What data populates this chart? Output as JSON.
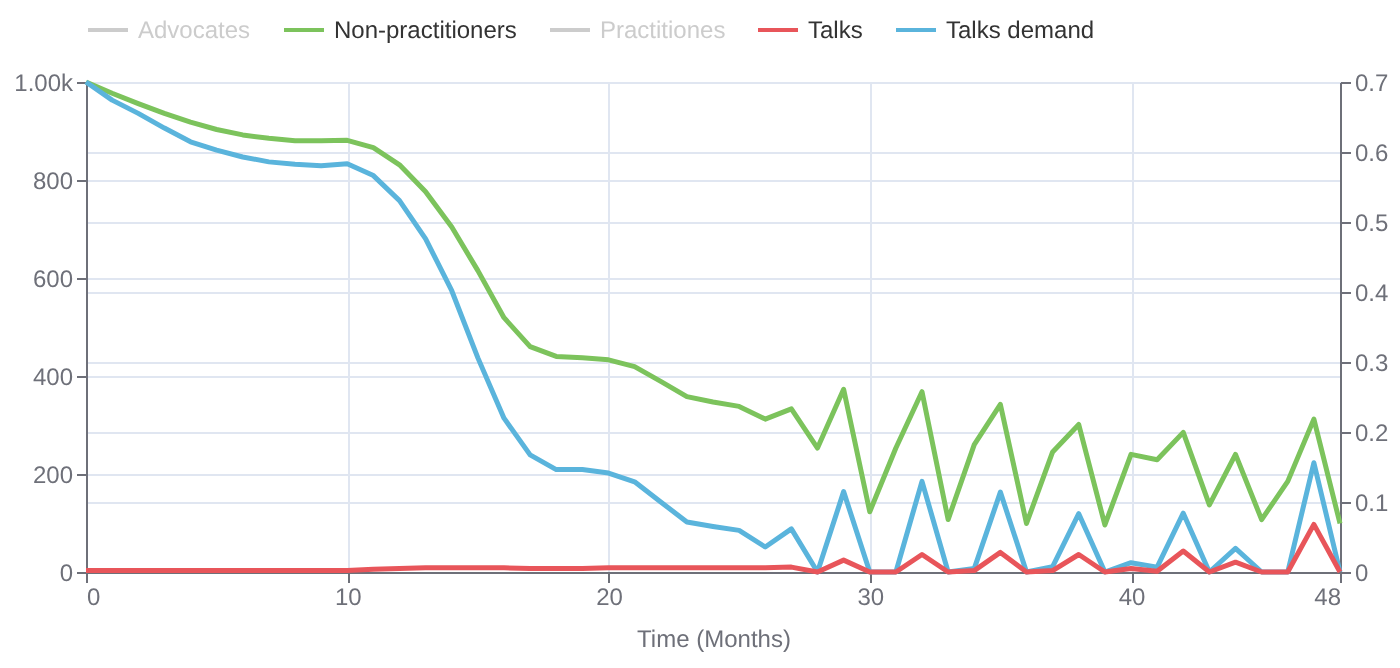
{
  "chart_data": {
    "type": "line",
    "xlabel": "Time (Months)",
    "x": [
      0,
      1,
      2,
      3,
      4,
      5,
      6,
      7,
      8,
      9,
      10,
      11,
      12,
      13,
      14,
      15,
      16,
      17,
      18,
      19,
      20,
      21,
      22,
      23,
      24,
      25,
      26,
      27,
      28,
      29,
      30,
      31,
      32,
      33,
      34,
      35,
      36,
      37,
      38,
      39,
      40,
      41,
      42,
      43,
      44,
      45,
      46,
      47,
      48
    ],
    "series": [
      {
        "name": "Advocates",
        "color": "#cccccc",
        "values": [
          null,
          null,
          null,
          null,
          null,
          null,
          null,
          null,
          null,
          null,
          null,
          null,
          null,
          null,
          null,
          null,
          null,
          null,
          null,
          null,
          null,
          null,
          null,
          null,
          null,
          null,
          null,
          null,
          null,
          null,
          null,
          null,
          null,
          null,
          null,
          null,
          null,
          null,
          null,
          null,
          null,
          null,
          null,
          null,
          null,
          null,
          null,
          null,
          null
        ]
      },
      {
        "name": "Non-practitioners",
        "color": "#7cc35c",
        "values": [
          1000,
          977,
          956,
          936,
          918,
          903,
          892,
          885,
          880,
          880,
          881,
          866,
          831,
          776,
          704,
          615,
          519,
          460,
          440,
          437,
          433,
          419,
          389,
          358,
          347,
          338,
          312,
          333,
          253,
          373,
          123,
          253,
          368,
          107,
          260,
          342,
          99,
          245,
          301,
          96,
          240,
          229,
          285,
          137,
          240,
          107,
          185,
          312,
          99
        ]
      },
      {
        "name": "Practitiones",
        "color": "#cccccc",
        "values": [
          null,
          null,
          null,
          null,
          null,
          null,
          null,
          null,
          null,
          null,
          null,
          null,
          null,
          null,
          null,
          null,
          null,
          null,
          null,
          null,
          null,
          null,
          null,
          null,
          null,
          null,
          null,
          null,
          null,
          null,
          null,
          null,
          null,
          null,
          null,
          null,
          null,
          null,
          null,
          null,
          null,
          null,
          null,
          null,
          null,
          null,
          null,
          null,
          null
        ]
      },
      {
        "name": "Talks",
        "color": "#e8555a",
        "axis": "y2",
        "values": [
          0.002,
          0.002,
          0.002,
          0.002,
          0.002,
          0.002,
          0.002,
          0.002,
          0.002,
          0.002,
          0.002,
          0.004,
          0.005,
          0.006,
          0.006,
          0.006,
          0.006,
          0.005,
          0.005,
          0.005,
          0.006,
          0.006,
          0.006,
          0.006,
          0.006,
          0.006,
          0.006,
          0.007,
          0,
          0.017,
          0,
          0,
          0.025,
          0,
          0.002,
          0.028,
          0,
          0.002,
          0.025,
          0,
          0.005,
          0.001,
          0.03,
          0,
          0.014,
          0,
          0,
          0.068,
          0
        ]
      },
      {
        "name": "Talks demand",
        "color": "#5ab4dc",
        "values": [
          1000,
          963,
          936,
          906,
          878,
          861,
          847,
          837,
          832,
          829,
          833,
          809,
          758,
          680,
          574,
          437,
          314,
          239,
          209,
          209,
          202,
          184,
          143,
          102,
          93,
          85,
          51,
          88,
          0,
          164,
          0,
          0,
          185,
          0,
          7,
          163,
          0,
          11,
          119,
          0,
          19,
          10,
          120,
          0,
          48,
          0,
          0,
          223,
          0
        ]
      }
    ],
    "xlim": [
      0,
      48
    ],
    "xticks": [
      0,
      10,
      20,
      30,
      40,
      48
    ],
    "ylim": [
      0,
      1000
    ],
    "yticks": [
      0,
      200,
      400,
      600,
      800,
      {
        "value": 1000,
        "label": "1.00k"
      }
    ],
    "y2lim": [
      0,
      0.7
    ],
    "y2ticks": [
      0,
      0.1,
      0.2,
      0.3,
      0.4,
      0.5,
      0.6,
      0.7
    ],
    "grid": true,
    "legend": "top"
  }
}
